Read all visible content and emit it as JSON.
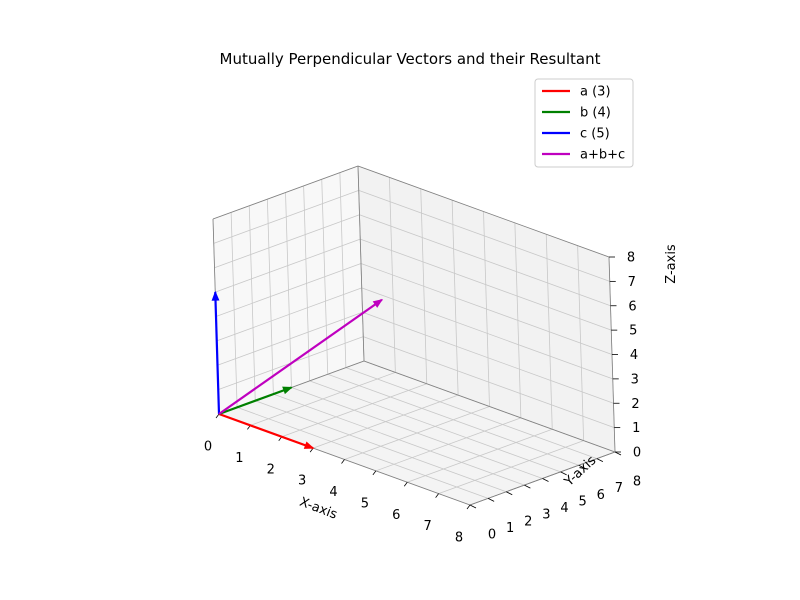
{
  "chart_data": {
    "type": "3d-vector",
    "title": "Mutually Perpendicular Vectors and their Resultant",
    "xlabel": "X-axis",
    "ylabel": "Y-axis",
    "zlabel": "Z-axis",
    "xlim": [
      0,
      8
    ],
    "ylim": [
      0,
      8
    ],
    "zlim": [
      0,
      8
    ],
    "xticks": [
      "0",
      "1",
      "2",
      "3",
      "4",
      "5",
      "6",
      "7",
      "8"
    ],
    "yticks": [
      "0",
      "1",
      "2",
      "3",
      "4",
      "5",
      "6",
      "7",
      "8"
    ],
    "zticks": [
      "0",
      "1",
      "2",
      "3",
      "4",
      "5",
      "6",
      "7",
      "8"
    ],
    "grid": true,
    "legend_position": "top-right",
    "series": [
      {
        "name": "a (3)",
        "color": "#ff0000",
        "origin": [
          0,
          0,
          0
        ],
        "vector": [
          3,
          0,
          0
        ]
      },
      {
        "name": "b (4)",
        "color": "#008000",
        "origin": [
          0,
          0,
          0
        ],
        "vector": [
          0,
          4,
          0
        ]
      },
      {
        "name": "c (5)",
        "color": "#0000ff",
        "origin": [
          0,
          0,
          0
        ],
        "vector": [
          0,
          0,
          5
        ]
      },
      {
        "name": "a+b+c",
        "color": "#bf00bf",
        "origin": [
          0,
          0,
          0
        ],
        "vector": [
          3,
          4,
          5
        ]
      }
    ]
  }
}
